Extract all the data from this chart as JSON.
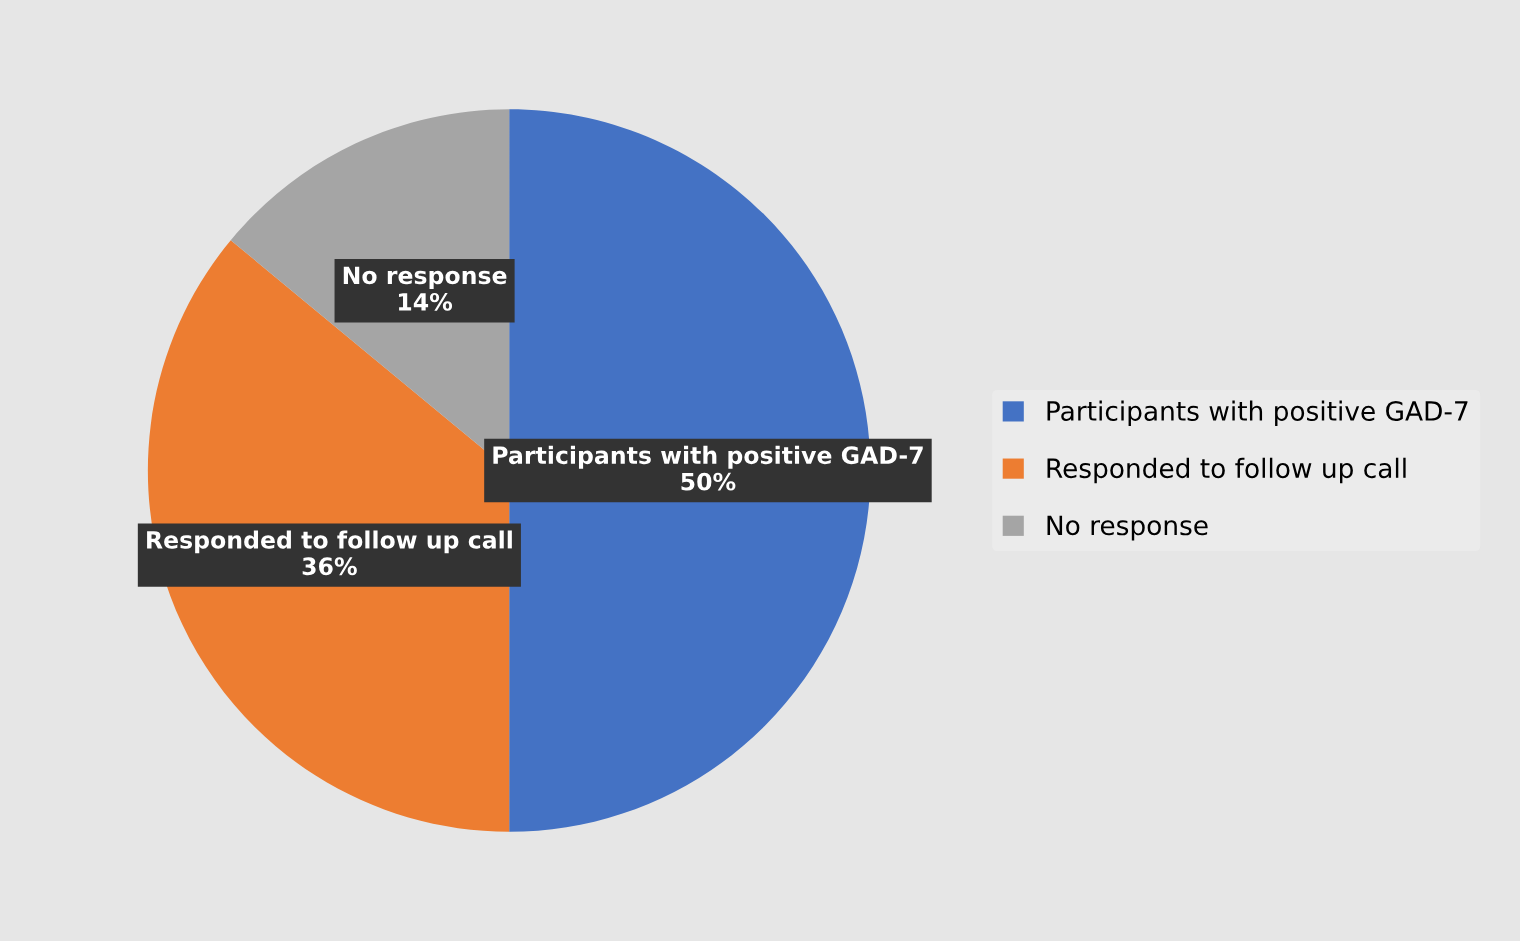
{
  "chart_data": {
    "type": "pie",
    "categories": [
      "Participants with positive GAD-7",
      "Responded to follow up call",
      "No response"
    ],
    "values": [
      50,
      36,
      14
    ],
    "colors": [
      "#4472c4",
      "#ed7d31",
      "#a5a5a5"
    ],
    "value_labels": [
      "50%",
      "36%",
      "14%"
    ],
    "legend": "right"
  }
}
